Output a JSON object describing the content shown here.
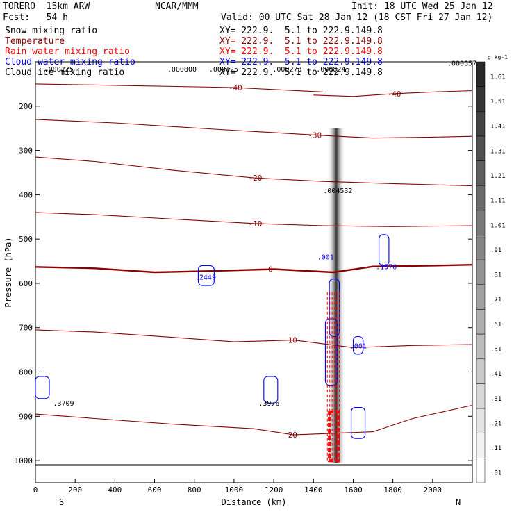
{
  "header": {
    "model": "TORERO  15km ARW",
    "center": "NCAR/MMM",
    "init": "Init: 18 UTC Wed 25 Jan 12",
    "fcst": "Fcst:   54 h",
    "valid": "Valid: 00 UTC Sat 28 Jan 12 (18 CST Fri 27 Jan 12)"
  },
  "legend": [
    {
      "name": "Snow mixing ratio",
      "xy": "XY= 222.9.  5.1 to 222.9.149.8",
      "color": "#000000"
    },
    {
      "name": "Temperature",
      "xy": "XY= 222.9.  5.1 to 222.9.149.8",
      "color": "#8b0000"
    },
    {
      "name": "Rain water mixing ratio",
      "xy": "XY= 222.9.  5.1 to 222.9.149.8",
      "color": "#ff0000"
    },
    {
      "name": "Cloud water mixing ratio",
      "xy": "XY= 222.9.  5.1 to 222.9.149.8",
      "color": "#0000ff"
    },
    {
      "name": "Cloud ice mixing ratio",
      "xy": "XY= 222.9.  5.1 to 222.9.149.8",
      "color": "#000000"
    }
  ],
  "chart_data": {
    "type": "cross-section",
    "xlabel": "Distance (km)",
    "ylabel": "Pressure (hPa)",
    "xlim": [
      0,
      2200
    ],
    "ylim": [
      1050,
      100
    ],
    "x_ticks": [
      0,
      200,
      400,
      600,
      800,
      1000,
      1200,
      1400,
      1600,
      1800,
      2000
    ],
    "y_ticks": [
      200,
      300,
      400,
      500,
      600,
      700,
      800,
      900,
      1000
    ],
    "x_end_labels": {
      "left": "S",
      "right": "N"
    },
    "colorbar": {
      "unit": "g kg-1",
      "levels": [
        "1.61",
        "1.51",
        "1.41",
        "1.31",
        "1.21",
        "1.11",
        "1.01",
        ".91",
        ".81",
        ".71",
        ".61",
        ".51",
        ".41",
        ".31",
        ".21",
        ".11",
        ".01"
      ]
    },
    "temperature_contours": [
      {
        "label": "-40",
        "points": [
          [
            1400,
            175
          ],
          [
            1600,
            178
          ],
          [
            1800,
            172
          ],
          [
            2000,
            168
          ],
          [
            2200,
            165
          ]
        ]
      },
      {
        "label": "-40",
        "points": [
          [
            0,
            150
          ],
          [
            500,
            154
          ],
          [
            1000,
            158
          ],
          [
            1450,
            168
          ]
        ]
      },
      {
        "label": "-30",
        "points": [
          [
            0,
            230
          ],
          [
            400,
            238
          ],
          [
            900,
            252
          ],
          [
            1400,
            265
          ],
          [
            1700,
            272
          ],
          [
            2000,
            270
          ],
          [
            2200,
            268
          ]
        ]
      },
      {
        "label": "-20",
        "points": [
          [
            0,
            315
          ],
          [
            300,
            325
          ],
          [
            700,
            345
          ],
          [
            1100,
            362
          ],
          [
            1450,
            370
          ],
          [
            1800,
            375
          ],
          [
            2200,
            380
          ]
        ]
      },
      {
        "label": "-10",
        "points": [
          [
            0,
            440
          ],
          [
            300,
            445
          ],
          [
            700,
            455
          ],
          [
            1100,
            465
          ],
          [
            1450,
            470
          ],
          [
            1800,
            472
          ],
          [
            2200,
            470
          ]
        ]
      },
      {
        "label": "0",
        "points": [
          [
            0,
            563
          ],
          [
            300,
            566
          ],
          [
            600,
            575
          ],
          [
            900,
            572
          ],
          [
            1200,
            568
          ],
          [
            1500,
            575
          ],
          [
            1700,
            562
          ],
          [
            2000,
            560
          ],
          [
            2200,
            558
          ]
        ]
      },
      {
        "label": "10",
        "points": [
          [
            0,
            705
          ],
          [
            300,
            710
          ],
          [
            700,
            722
          ],
          [
            1000,
            732
          ],
          [
            1300,
            728
          ],
          [
            1600,
            745
          ],
          [
            1900,
            740
          ],
          [
            2200,
            738
          ]
        ]
      },
      {
        "label": "20",
        "points": [
          [
            0,
            895
          ],
          [
            300,
            905
          ],
          [
            700,
            918
          ],
          [
            1100,
            928
          ],
          [
            1300,
            942
          ],
          [
            1700,
            935
          ],
          [
            1900,
            905
          ],
          [
            2200,
            875
          ]
        ]
      }
    ],
    "surface_pressure": 1010,
    "max_labels": [
      {
        "text": ".2449",
        "x": 860,
        "p": 585,
        "color": "#0000ff"
      },
      {
        "text": ".1576",
        "x": 1770,
        "p": 562,
        "color": "#0000ff"
      },
      {
        "text": ".004532",
        "x": 1505,
        "p": 390,
        "color": "#000000"
      },
      {
        "text": ".001",
        "x": 1640,
        "p": 740,
        "color": "#0000ff"
      },
      {
        "text": ".001",
        "x": 1475,
        "p": 540,
        "color": "#0000ff"
      },
      {
        "text": ".3709",
        "x": 145,
        "p": 870,
        "color": "#000000"
      },
      {
        "text": ".3976",
        "x": 1180,
        "p": 870,
        "color": "#000000"
      },
      {
        "text": ".000357",
        "x": 2130,
        "p": 102,
        "color": "#000000"
      },
      {
        "text": ".000800",
        "x": 720,
        "p": 116,
        "color": "#000000"
      },
      {
        "text": ".000425",
        "x": 930,
        "p": 116,
        "color": "#000000"
      },
      {
        "text": ".000273",
        "x": 1250,
        "p": 116,
        "color": "#000000"
      },
      {
        "text": ".000824",
        "x": 1470,
        "p": 116,
        "color": "#000000"
      },
      {
        "text": ".000225",
        "x": 100,
        "p": 116,
        "color": "#000000"
      }
    ]
  }
}
